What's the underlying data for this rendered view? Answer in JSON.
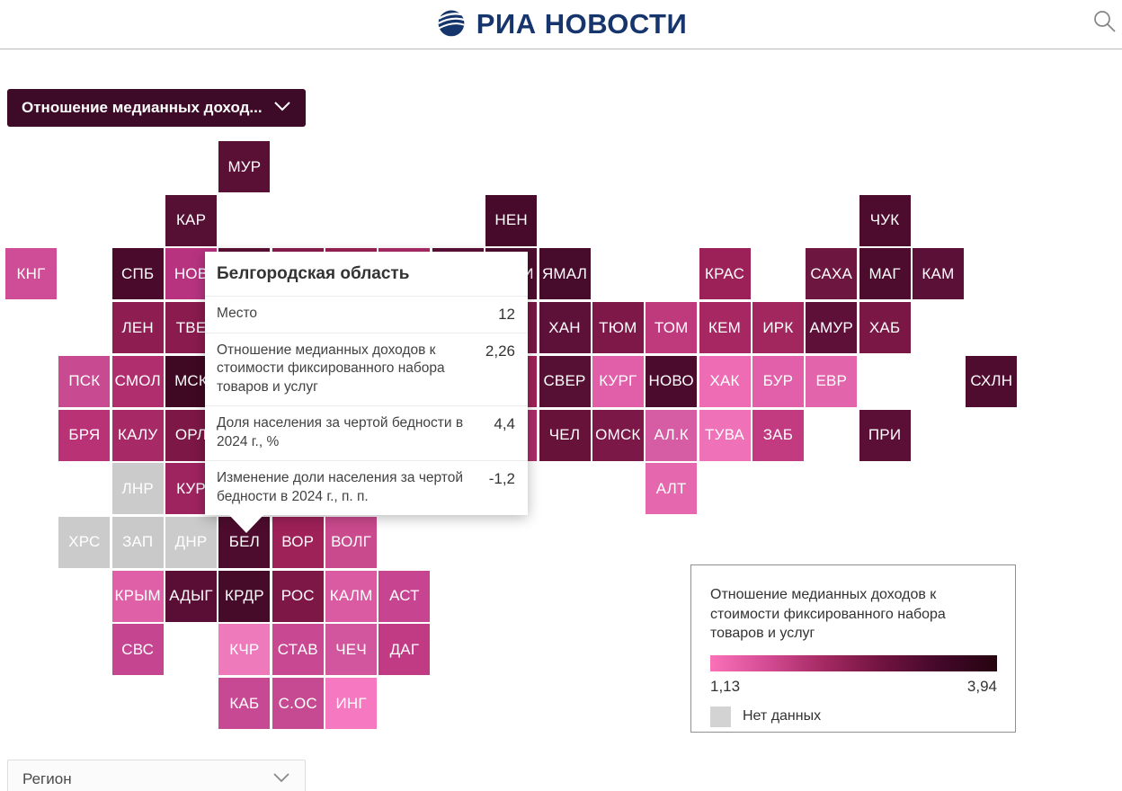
{
  "header": {
    "logo_text": "РИА НОВОСТИ"
  },
  "controls": {
    "metric_dropdown_label": "Отношение медианных доход...",
    "region_dropdown_label": "Регион"
  },
  "tooltip": {
    "title": "Белгородская область",
    "rows": [
      {
        "label": "Место",
        "value": "12"
      },
      {
        "label": "Отношение медианных доходов к стоимости фиксированного набора товаров и услуг",
        "value": "2,26"
      },
      {
        "label": "Доля населения за чертой бедности в 2024 г., %",
        "value": "4,4"
      },
      {
        "label": "Изменение доли населения за чертой бедности в 2024 г., п. п.",
        "value": "-1,2"
      }
    ]
  },
  "legend": {
    "title": "Отношение медианных доходов к стоимости фиксированного набора товаров и услуг",
    "min": "1,13",
    "max": "3,94",
    "no_data_label": "Нет данных",
    "gradient_start": "#fa71b8",
    "gradient_end": "#26030f",
    "no_data_color": "#d3d3d3"
  },
  "chart_data": {
    "type": "heatmap",
    "title": "Отношение медианных доходов к стоимости фиксированного набора товаров и услуг",
    "value_range": [
      1.13,
      3.94
    ],
    "legend_position": "bottom-right",
    "selected_region": {
      "name": "Белгородская область",
      "tile": "БЕЛ",
      "place": 12,
      "income_to_goods_ratio": 2.26,
      "poverty_share_2024_pct": 4.4,
      "poverty_share_change_2024_pp": -1.2
    },
    "tiles": [
      {
        "label": "МУР",
        "col": 4,
        "row": 0,
        "color": "#5a1034"
      },
      {
        "label": "КАР",
        "col": 3,
        "row": 1,
        "color": "#561033"
      },
      {
        "label": "НЕН",
        "col": 9,
        "row": 1,
        "color": "#470a2a"
      },
      {
        "label": "ЧУК",
        "col": 16,
        "row": 1,
        "color": "#4d0c2e"
      },
      {
        "label": "КНГ",
        "col": 0,
        "row": 2,
        "color": "#cf4c96"
      },
      {
        "label": "СПБ",
        "col": 2,
        "row": 2,
        "color": "#4a0a2c"
      },
      {
        "label": "НОВ",
        "col": 3,
        "row": 2,
        "color": "#b73380"
      },
      {
        "label": "",
        "col": 4,
        "row": 2,
        "color": "#5e1035"
      },
      {
        "label": "",
        "col": 5,
        "row": 2,
        "color": "#8c1c50"
      },
      {
        "label": "",
        "col": 6,
        "row": 2,
        "color": "#9c2156"
      },
      {
        "label": "",
        "col": 7,
        "row": 2,
        "color": "#ae2c68"
      },
      {
        "label": "",
        "col": 8,
        "row": 2,
        "color": "#5e1038"
      },
      {
        "label": "КОМИ",
        "col": 9,
        "row": 2,
        "color": "#4f0d2f"
      },
      {
        "label": "ЯМАЛ",
        "col": 10,
        "row": 2,
        "color": "#470b2b"
      },
      {
        "label": "КРАС",
        "col": 13,
        "row": 2,
        "color": "#9c2158"
      },
      {
        "label": "САХА",
        "col": 15,
        "row": 2,
        "color": "#6d1640"
      },
      {
        "label": "МАГ",
        "col": 16,
        "row": 2,
        "color": "#4d0c2e"
      },
      {
        "label": "КАМ",
        "col": 17,
        "row": 2,
        "color": "#5b1038"
      },
      {
        "label": "ЛЕН",
        "col": 2,
        "row": 3,
        "color": "#8e1d52"
      },
      {
        "label": "ТВЕ",
        "col": 3,
        "row": 3,
        "color": "#8a1b4e"
      },
      {
        "label": "",
        "col": 9,
        "row": 3,
        "color": "#7a1846"
      },
      {
        "label": "ХАН",
        "col": 10,
        "row": 3,
        "color": "#5d1038"
      },
      {
        "label": "ТЮМ",
        "col": 11,
        "row": 3,
        "color": "#7e1848"
      },
      {
        "label": "ТОМ",
        "col": 12,
        "row": 3,
        "color": "#bf3a7d"
      },
      {
        "label": "КЕМ",
        "col": 13,
        "row": 3,
        "color": "#a62762"
      },
      {
        "label": "ИРК",
        "col": 14,
        "row": 3,
        "color": "#a3275f"
      },
      {
        "label": "АМУР",
        "col": 15,
        "row": 3,
        "color": "#5e1038"
      },
      {
        "label": "ХАБ",
        "col": 16,
        "row": 3,
        "color": "#7b1745"
      },
      {
        "label": "ПСК",
        "col": 1,
        "row": 4,
        "color": "#c84a90"
      },
      {
        "label": "СМОЛ",
        "col": 2,
        "row": 4,
        "color": "#b02e6d"
      },
      {
        "label": "МСК",
        "col": 3,
        "row": 4,
        "color": "#3f0823"
      },
      {
        "label": "",
        "col": 9,
        "row": 4,
        "color": "#a02258"
      },
      {
        "label": "СВЕР",
        "col": 10,
        "row": 4,
        "color": "#561034"
      },
      {
        "label": "КУРГ",
        "col": 11,
        "row": 4,
        "color": "#e05fa8"
      },
      {
        "label": "НОВО",
        "col": 12,
        "row": 4,
        "color": "#4b0b2c"
      },
      {
        "label": "ХАК",
        "col": 13,
        "row": 4,
        "color": "#ee6cb4"
      },
      {
        "label": "БУР",
        "col": 14,
        "row": 4,
        "color": "#e160a9"
      },
      {
        "label": "ЕВР",
        "col": 15,
        "row": 4,
        "color": "#e264ab"
      },
      {
        "label": "СХЛН",
        "col": 18,
        "row": 4,
        "color": "#4f0c2e"
      },
      {
        "label": "БРЯ",
        "col": 1,
        "row": 5,
        "color": "#b93275"
      },
      {
        "label": "КАЛУ",
        "col": 2,
        "row": 5,
        "color": "#a72a66"
      },
      {
        "label": "ОРЛ",
        "col": 3,
        "row": 5,
        "color": "#7d1746"
      },
      {
        "label": "",
        "col": 9,
        "row": 5,
        "color": "#ad2c6a"
      },
      {
        "label": "ЧЕЛ",
        "col": 10,
        "row": 5,
        "color": "#661239"
      },
      {
        "label": "ОМСК",
        "col": 11,
        "row": 5,
        "color": "#7c1847"
      },
      {
        "label": "АЛ.К",
        "col": 12,
        "row": 5,
        "color": "#d65ca4"
      },
      {
        "label": "ТУВА",
        "col": 13,
        "row": 5,
        "color": "#ef72b8"
      },
      {
        "label": "ЗАБ",
        "col": 14,
        "row": 5,
        "color": "#c23a80"
      },
      {
        "label": "ПРИ",
        "col": 16,
        "row": 5,
        "color": "#5c0f36"
      },
      {
        "label": "ЛНР",
        "col": 2,
        "row": 6,
        "color": "#cbcbcb"
      },
      {
        "label": "КУР",
        "col": 3,
        "row": 6,
        "color": "#9e2460"
      },
      {
        "label": "",
        "col": 4,
        "row": 6,
        "color": "#4d0e2d"
      },
      {
        "label": "",
        "col": 5,
        "row": 6,
        "color": "#aa2b67"
      },
      {
        "label": "",
        "col": 6,
        "row": 6,
        "color": "#a62a64"
      },
      {
        "label": "",
        "col": 7,
        "row": 6,
        "color": "#d4579e"
      },
      {
        "label": "",
        "col": 8,
        "row": 6,
        "color": "#cf55a0"
      },
      {
        "label": "АЛТ",
        "col": 12,
        "row": 6,
        "color": "#e567ad"
      },
      {
        "label": "ХРС",
        "col": 1,
        "row": 7,
        "color": "#cbcbcb"
      },
      {
        "label": "ЗАП",
        "col": 2,
        "row": 7,
        "color": "#c9c9c9"
      },
      {
        "label": "ДНР",
        "col": 3,
        "row": 7,
        "color": "#cbcbcb"
      },
      {
        "label": "БЕЛ",
        "col": 4,
        "row": 7,
        "color": "#4d0c2d"
      },
      {
        "label": "ВОР",
        "col": 5,
        "row": 7,
        "color": "#9e2158"
      },
      {
        "label": "ВОЛГ",
        "col": 6,
        "row": 7,
        "color": "#ca4a8e"
      },
      {
        "label": "КРЫМ",
        "col": 2,
        "row": 8,
        "color": "#e060a8"
      },
      {
        "label": "АДЫГ",
        "col": 3,
        "row": 8,
        "color": "#5a0e35"
      },
      {
        "label": "КРДР",
        "col": 4,
        "row": 8,
        "color": "#470b2a"
      },
      {
        "label": "РОС",
        "col": 5,
        "row": 8,
        "color": "#7d1746"
      },
      {
        "label": "КАЛМ",
        "col": 6,
        "row": 8,
        "color": "#db5ba2"
      },
      {
        "label": "АСТ",
        "col": 7,
        "row": 8,
        "color": "#c74490"
      },
      {
        "label": "СВС",
        "col": 2,
        "row": 9,
        "color": "#c64590"
      },
      {
        "label": "КЧР",
        "col": 4,
        "row": 9,
        "color": "#ee79bb"
      },
      {
        "label": "СТАВ",
        "col": 5,
        "row": 9,
        "color": "#c94892"
      },
      {
        "label": "ЧЕЧ",
        "col": 6,
        "row": 9,
        "color": "#d1569d"
      },
      {
        "label": "ДАГ",
        "col": 7,
        "row": 9,
        "color": "#c13a84"
      },
      {
        "label": "КАБ",
        "col": 4,
        "row": 10,
        "color": "#c74993"
      },
      {
        "label": "С.ОС",
        "col": 5,
        "row": 10,
        "color": "#c54a92"
      },
      {
        "label": "ИНГ",
        "col": 6,
        "row": 10,
        "color": "#f678c0"
      }
    ]
  }
}
